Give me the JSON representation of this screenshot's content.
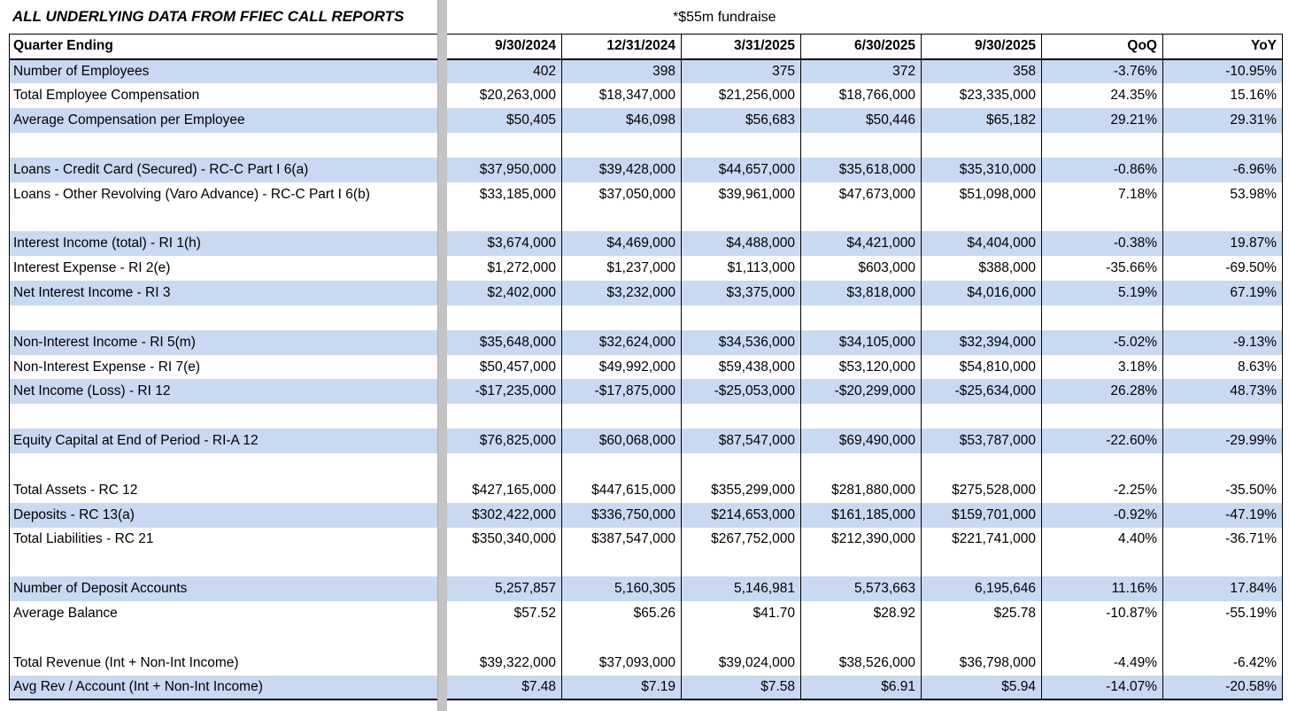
{
  "title": "ALL UNDERLYING DATA FROM FFIEC CALL REPORTS",
  "note": "*$55m fundraise",
  "colors": {
    "band_blue": "#c9d9f2",
    "divider_gray": "#c4c4c4",
    "border_black": "#000000"
  },
  "table": {
    "header": [
      "Quarter Ending",
      "9/30/2024",
      "12/31/2024",
      "3/31/2025",
      "6/30/2025",
      "9/30/2025",
      "QoQ",
      "YoY"
    ],
    "rows": [
      {
        "label": "Number of Employees",
        "cells": [
          "402",
          "398",
          "375",
          "372",
          "358",
          "-3.76%",
          "-10.95%"
        ],
        "banded": true
      },
      {
        "label": "Total Employee Compensation",
        "cells": [
          "$20,263,000",
          "$18,347,000",
          "$21,256,000",
          "$18,766,000",
          "$23,335,000",
          "24.35%",
          "15.16%"
        ],
        "banded": false
      },
      {
        "label": "Average Compensation per Employee",
        "cells": [
          "$50,405",
          "$46,098",
          "$56,683",
          "$50,446",
          "$65,182",
          "29.21%",
          "29.31%"
        ],
        "banded": true
      },
      {
        "blank": true
      },
      {
        "label": "Loans - Credit Card (Secured) - RC-C Part I 6(a)",
        "cells": [
          "$37,950,000",
          "$39,428,000",
          "$44,657,000",
          "$35,618,000",
          "$35,310,000",
          "-0.86%",
          "-6.96%"
        ],
        "banded": true
      },
      {
        "label": "Loans  - Other Revolving (Varo Advance) - RC-C Part I 6(b)",
        "cells": [
          "$33,185,000",
          "$37,050,000",
          "$39,961,000",
          "$47,673,000",
          "$51,098,000",
          "7.18%",
          "53.98%"
        ],
        "banded": false
      },
      {
        "blank": true
      },
      {
        "label": "Interest Income (total) - RI 1(h)",
        "cells": [
          "$3,674,000",
          "$4,469,000",
          "$4,488,000",
          "$4,421,000",
          "$4,404,000",
          "-0.38%",
          "19.87%"
        ],
        "banded": true
      },
      {
        "label": "Interest Expense - RI 2(e)",
        "cells": [
          "$1,272,000",
          "$1,237,000",
          "$1,113,000",
          "$603,000",
          "$388,000",
          "-35.66%",
          "-69.50%"
        ],
        "banded": false
      },
      {
        "label": "Net Interest Income - RI 3",
        "cells": [
          "$2,402,000",
          "$3,232,000",
          "$3,375,000",
          "$3,818,000",
          "$4,016,000",
          "5.19%",
          "67.19%"
        ],
        "banded": true
      },
      {
        "blank": true
      },
      {
        "label": "Non-Interest Income - RI 5(m)",
        "cells": [
          "$35,648,000",
          "$32,624,000",
          "$34,536,000",
          "$34,105,000",
          "$32,394,000",
          "-5.02%",
          "-9.13%"
        ],
        "banded": true
      },
      {
        "label": "Non-Interest Expense - RI 7(e)",
        "cells": [
          "$50,457,000",
          "$49,992,000",
          "$59,438,000",
          "$53,120,000",
          "$54,810,000",
          "3.18%",
          "8.63%"
        ],
        "banded": false
      },
      {
        "label": "Net Income (Loss) - RI 12",
        "cells": [
          "-$17,235,000",
          "-$17,875,000",
          "-$25,053,000",
          "-$20,299,000",
          "-$25,634,000",
          "26.28%",
          "48.73%"
        ],
        "banded": true
      },
      {
        "blank": true
      },
      {
        "label": "Equity Capital at End of Period - RI-A 12",
        "cells": [
          "$76,825,000",
          "$60,068,000",
          "$87,547,000",
          "$69,490,000",
          "$53,787,000",
          "-22.60%",
          "-29.99%"
        ],
        "banded": true
      },
      {
        "blank": true
      },
      {
        "label": "Total Assets - RC 12",
        "cells": [
          "$427,165,000",
          "$447,615,000",
          "$355,299,000",
          "$281,880,000",
          "$275,528,000",
          "-2.25%",
          "-35.50%"
        ],
        "banded": false
      },
      {
        "label": "Deposits - RC 13(a)",
        "cells": [
          "$302,422,000",
          "$336,750,000",
          "$214,653,000",
          "$161,185,000",
          "$159,701,000",
          "-0.92%",
          "-47.19%"
        ],
        "banded": true
      },
      {
        "label": "Total Liabilities - RC 21",
        "cells": [
          "$350,340,000",
          "$387,547,000",
          "$267,752,000",
          "$212,390,000",
          "$221,741,000",
          "4.40%",
          "-36.71%"
        ],
        "banded": false
      },
      {
        "blank": true
      },
      {
        "label": "Number of Deposit Accounts",
        "cells": [
          "5,257,857",
          "5,160,305",
          "5,146,981",
          "5,573,663",
          "6,195,646",
          "11.16%",
          "17.84%"
        ],
        "banded": true
      },
      {
        "label": "Average Balance",
        "cells": [
          "$57.52",
          "$65.26",
          "$41.70",
          "$28.92",
          "$25.78",
          "-10.87%",
          "-55.19%"
        ],
        "banded": false
      },
      {
        "blank": true
      },
      {
        "label": "Total Revenue (Int + Non-Int Income)",
        "cells": [
          "$39,322,000",
          "$37,093,000",
          "$39,024,000",
          "$38,526,000",
          "$36,798,000",
          "-4.49%",
          "-6.42%"
        ],
        "banded": false
      },
      {
        "label": "Avg Rev / Account (Int + Non-Int Income)",
        "cells": [
          "$7.48",
          "$7.19",
          "$7.58",
          "$6.91",
          "$5.94",
          "-14.07%",
          "-20.58%"
        ],
        "banded": true
      }
    ]
  }
}
